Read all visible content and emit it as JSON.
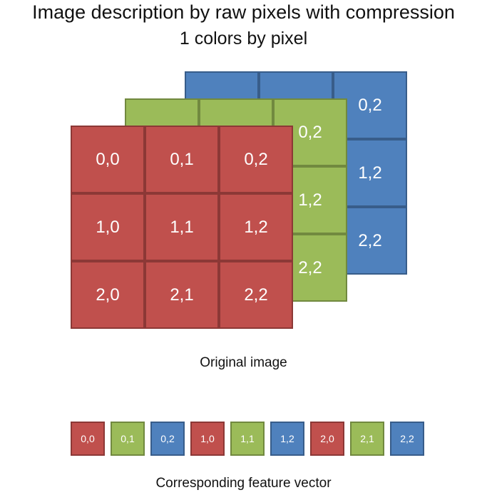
{
  "title": "Image description by raw pixels with compression",
  "subtitle": "1 colors by pixel",
  "original_caption": "Original image",
  "vector_caption": "Corresponding feature vector",
  "colors": {
    "red": "#c0504d",
    "green": "#9bbb59",
    "blue": "#4f81bd"
  },
  "layers": {
    "blue": [
      "",
      "",
      "0,2",
      "",
      "",
      "1,2",
      "",
      "",
      "2,2"
    ],
    "green": [
      "",
      "",
      "0,2",
      "",
      "",
      "1,2",
      "",
      "",
      "2,2"
    ],
    "red": [
      "0,0",
      "0,1",
      "0,2",
      "1,0",
      "1,1",
      "1,2",
      "2,0",
      "2,1",
      "2,2"
    ]
  },
  "vector": [
    {
      "label": "0,0",
      "color": "red"
    },
    {
      "label": "0,1",
      "color": "green"
    },
    {
      "label": "0,2",
      "color": "blue"
    },
    {
      "label": "1,0",
      "color": "red"
    },
    {
      "label": "1,1",
      "color": "green"
    },
    {
      "label": "1,2",
      "color": "blue"
    },
    {
      "label": "2,0",
      "color": "red"
    },
    {
      "label": "2,1",
      "color": "green"
    },
    {
      "label": "2,2",
      "color": "blue"
    }
  ]
}
